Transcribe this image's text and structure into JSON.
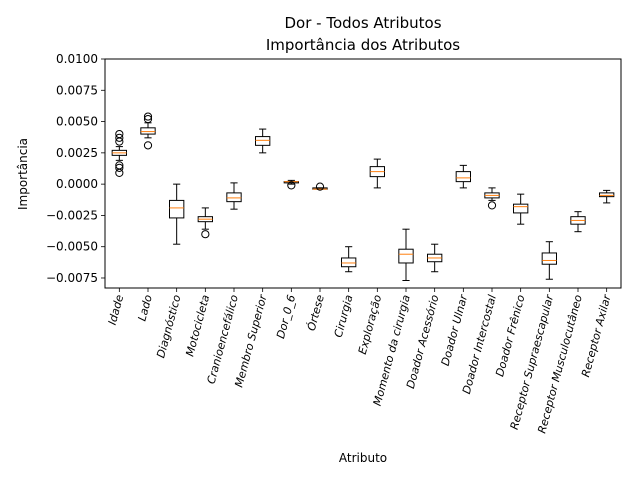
{
  "chart_data": {
    "type": "boxplot",
    "title": "Dor - Todos Atributos",
    "subtitle": "Importância dos Atributos",
    "xlabel": "Atributo",
    "ylabel": "Importância",
    "ylim": [
      -0.0083,
      0.01
    ],
    "yticks": [
      -0.0075,
      -0.005,
      -0.0025,
      0.0,
      0.0025,
      0.005,
      0.0075,
      0.01
    ],
    "ytick_labels": [
      "−0.0075",
      "−0.0050",
      "−0.0025",
      "0.0000",
      "0.0025",
      "0.0050",
      "0.0075",
      "0.0100"
    ],
    "grid": false,
    "colors": {
      "box": "#000000",
      "median": "#ff7f0e"
    },
    "categories": [
      "Idade",
      "Lado",
      "Diagnóstico",
      "Motocicleta",
      "Cranioencefálico",
      "Membro Superior",
      "Dor_0_6",
      "Órtese",
      "Cirurgia",
      "Exploração",
      "Momento da cirurgia",
      "Doador Acessório",
      "Doador Ulnar",
      "Doador Intercostal",
      "Doador Frênico",
      "Receptor Supraescapular",
      "Receptor Musculocutâneo",
      "Receptor Axilar"
    ],
    "boxes": [
      {
        "whislo": 0.0019,
        "q1": 0.0023,
        "med": 0.0025,
        "q3": 0.0027,
        "whishi": 0.003,
        "fliers": [
          0.004,
          0.0037,
          0.0034,
          0.0015,
          0.0013,
          0.0009
        ]
      },
      {
        "whislo": 0.0037,
        "q1": 0.004,
        "med": 0.0042,
        "q3": 0.0045,
        "whishi": 0.0049,
        "fliers": [
          0.0054,
          0.0052,
          0.0031
        ]
      },
      {
        "whislo": -0.0048,
        "q1": -0.0027,
        "med": -0.0019,
        "q3": -0.0013,
        "whishi": 0.0,
        "fliers": []
      },
      {
        "whislo": -0.0036,
        "q1": -0.003,
        "med": -0.0028,
        "q3": -0.0026,
        "whishi": -0.0019,
        "fliers": [
          -0.004
        ]
      },
      {
        "whislo": -0.002,
        "q1": -0.0014,
        "med": -0.0011,
        "q3": -0.0007,
        "whishi": 0.0001,
        "fliers": []
      },
      {
        "whislo": 0.0025,
        "q1": 0.0031,
        "med": 0.0035,
        "q3": 0.0038,
        "whishi": 0.0044,
        "fliers": []
      },
      {
        "whislo": 0.0,
        "q1": 0.0001,
        "med": 0.0002,
        "q3": 0.0002,
        "whishi": 0.0003,
        "fliers": [
          -0.0001
        ]
      },
      {
        "whislo": -0.0004,
        "q1": -0.0004,
        "med": -0.0004,
        "q3": -0.0003,
        "whishi": -0.0003,
        "fliers": [
          -0.0002
        ]
      },
      {
        "whislo": -0.007,
        "q1": -0.0066,
        "med": -0.0063,
        "q3": -0.0059,
        "whishi": -0.005,
        "fliers": []
      },
      {
        "whislo": -0.0003,
        "q1": 0.0006,
        "med": 0.001,
        "q3": 0.0014,
        "whishi": 0.002,
        "fliers": []
      },
      {
        "whislo": -0.0077,
        "q1": -0.0063,
        "med": -0.0056,
        "q3": -0.0052,
        "whishi": -0.0036,
        "fliers": []
      },
      {
        "whislo": -0.007,
        "q1": -0.0062,
        "med": -0.0059,
        "q3": -0.0056,
        "whishi": -0.0048,
        "fliers": []
      },
      {
        "whislo": -0.0003,
        "q1": 0.0002,
        "med": 0.0005,
        "q3": 0.001,
        "whishi": 0.0015,
        "fliers": []
      },
      {
        "whislo": -0.0013,
        "q1": -0.0011,
        "med": -0.0009,
        "q3": -0.0007,
        "whishi": -0.0003,
        "fliers": [
          -0.0017
        ]
      },
      {
        "whislo": -0.0032,
        "q1": -0.0023,
        "med": -0.0018,
        "q3": -0.0016,
        "whishi": -0.0008,
        "fliers": []
      },
      {
        "whislo": -0.0076,
        "q1": -0.0064,
        "med": -0.0061,
        "q3": -0.0055,
        "whishi": -0.0046,
        "fliers": []
      },
      {
        "whislo": -0.0038,
        "q1": -0.0032,
        "med": -0.0029,
        "q3": -0.0026,
        "whishi": -0.0022,
        "fliers": []
      },
      {
        "whislo": -0.0015,
        "q1": -0.001,
        "med": -0.0009,
        "q3": -0.0007,
        "whishi": -0.0005,
        "fliers": []
      }
    ]
  }
}
